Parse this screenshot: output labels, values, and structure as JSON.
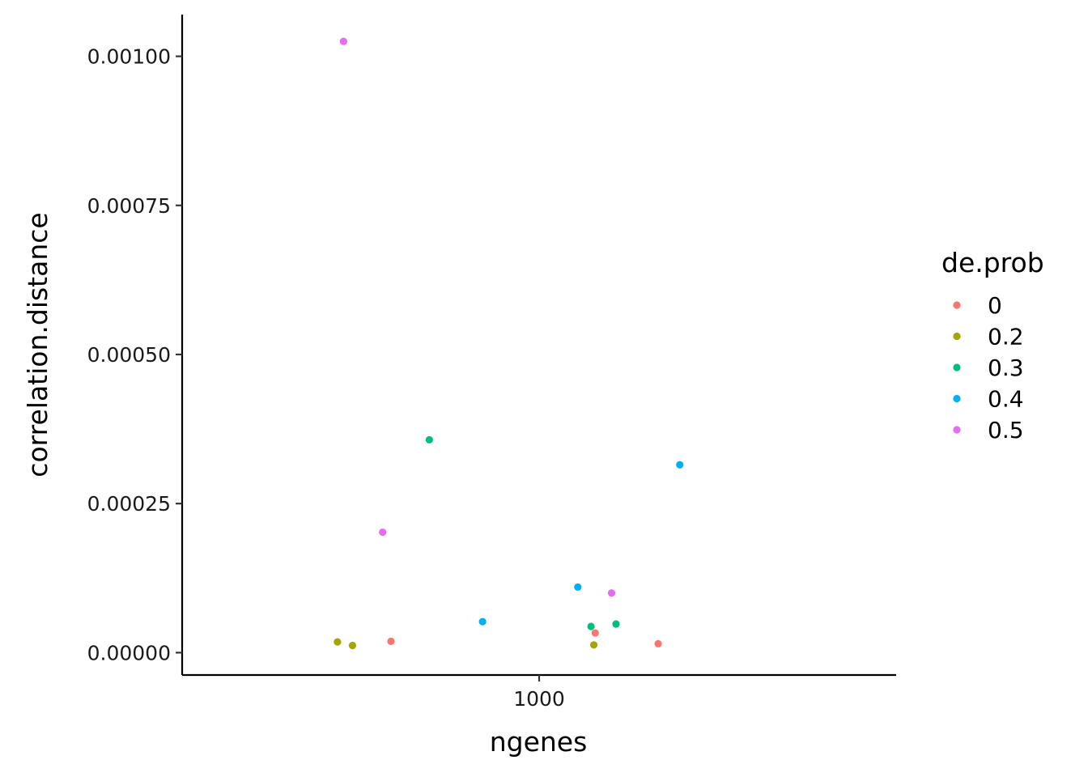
{
  "chart_data": {
    "type": "scatter",
    "xlabel": "ngenes",
    "ylabel": "correlation.distance",
    "x_scale": "log10",
    "xlim": [
      500,
      2000
    ],
    "ylim": [
      -3.75e-05,
      0.00107
    ],
    "x_ticks": [
      {
        "value": 1000,
        "label": "1000"
      }
    ],
    "y_ticks": [
      {
        "value": 0,
        "label": "0.00000"
      },
      {
        "value": 0.00025,
        "label": "0.00025"
      },
      {
        "value": 0.0005,
        "label": "0.00050"
      },
      {
        "value": 0.00075,
        "label": "0.00075"
      },
      {
        "value": 0.001,
        "label": "0.00100"
      }
    ],
    "grid": false,
    "legend": {
      "title": "de.prob",
      "placement": "right",
      "entries": [
        {
          "label": "0",
          "color": "#F8766D"
        },
        {
          "label": "0.2",
          "color": "#A3A500"
        },
        {
          "label": "0.3",
          "color": "#00BF7D"
        },
        {
          "label": "0.4",
          "color": "#00B0F6"
        },
        {
          "label": "0.5",
          "color": "#E76BF3"
        }
      ]
    },
    "series": [
      {
        "name": "0",
        "color": "#F8766D",
        "points": [
          {
            "x": 750,
            "y": 1.9e-05
          },
          {
            "x": 1115,
            "y": 3.3e-05
          },
          {
            "x": 1260,
            "y": 1.5e-05
          }
        ]
      },
      {
        "name": "0.2",
        "color": "#A3A500",
        "points": [
          {
            "x": 676,
            "y": 1.8e-05
          },
          {
            "x": 696,
            "y": 1.2e-05
          },
          {
            "x": 1112,
            "y": 1.3e-05
          }
        ]
      },
      {
        "name": "0.3",
        "color": "#00BF7D",
        "points": [
          {
            "x": 808,
            "y": 0.000357
          },
          {
            "x": 1106,
            "y": 4.4e-05
          },
          {
            "x": 1161,
            "y": 4.8e-05
          }
        ]
      },
      {
        "name": "0.4",
        "color": "#00B0F6",
        "points": [
          {
            "x": 896,
            "y": 5.2e-05
          },
          {
            "x": 1078,
            "y": 0.00011
          },
          {
            "x": 1314,
            "y": 0.000315
          }
        ]
      },
      {
        "name": "0.5",
        "color": "#E76BF3",
        "points": [
          {
            "x": 684,
            "y": 0.001025
          },
          {
            "x": 738,
            "y": 0.000202
          },
          {
            "x": 1151,
            "y": 0.0001
          }
        ]
      }
    ]
  }
}
